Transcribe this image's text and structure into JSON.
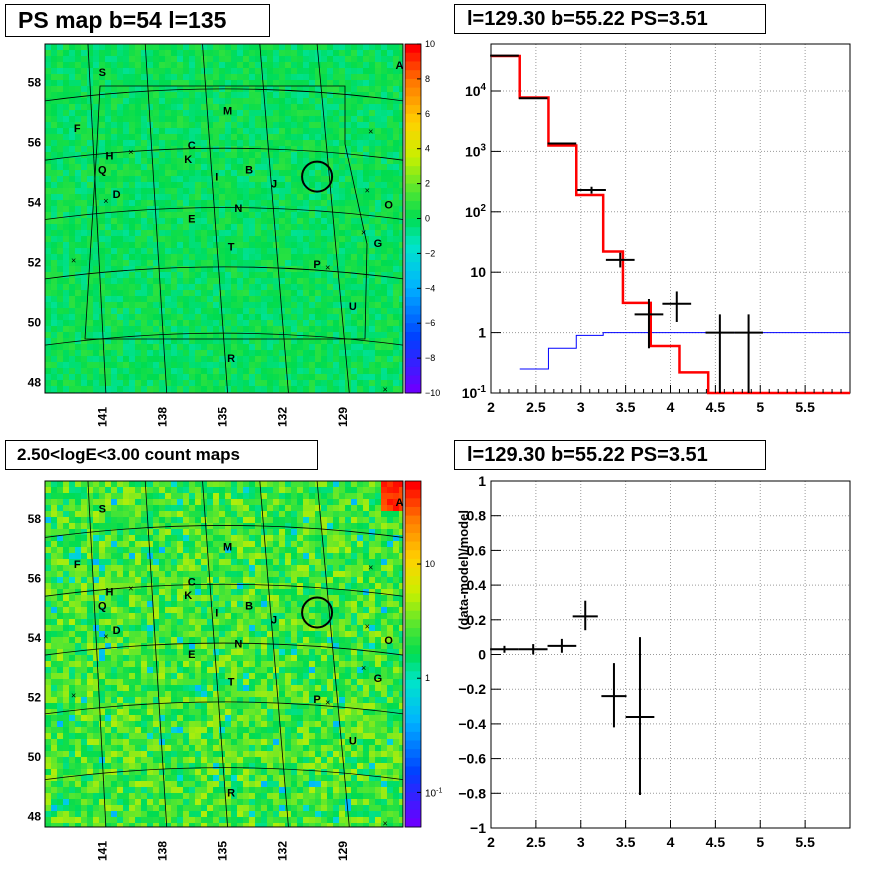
{
  "panels": {
    "top_left_title": "PS map b=54 l=135",
    "top_right_title": "l=129.30 b=55.22 PS=3.51",
    "bottom_left_title": "2.50<logE<3.00 count maps",
    "bottom_right_title": "l=129.30 b=55.22 PS=3.51"
  },
  "chart_data": [
    {
      "type": "heatmap",
      "title": "PS map b=54 l=135",
      "x_tick_labels": [
        "141",
        "138",
        "135",
        "132",
        "129"
      ],
      "y_tick_labels": [
        "48",
        "50",
        "52",
        "54",
        "56",
        "58"
      ],
      "colorbar": {
        "scale": "linear",
        "range": [
          -10,
          10
        ],
        "tick_labels": [
          "10",
          "8",
          "6",
          "4",
          "2",
          "0",
          "−2",
          "−4",
          "−6",
          "−8",
          "−10"
        ]
      },
      "source_labels": [
        "S",
        "A",
        "M",
        "F",
        "C",
        "H",
        "K",
        "Q",
        "I",
        "B",
        "J",
        "D",
        "O",
        "N",
        "E",
        "G",
        "T",
        "P",
        "U",
        "R"
      ],
      "dominant_value": 0
    },
    {
      "type": "line",
      "title": "l=129.30 b=55.22 PS=3.51",
      "xlim": [
        2,
        6
      ],
      "ylim": [
        0.1,
        60000
      ],
      "y_scale": "log",
      "x_tick_labels": [
        "2",
        "2.5",
        "3",
        "3.5",
        "4",
        "4.5",
        "5",
        "5.5"
      ],
      "y_tick_labels": [
        "10^-1",
        "1",
        "10",
        "10^2",
        "10^3",
        "10^4"
      ],
      "model_total": {
        "color": "#ff0000",
        "edges": [
          2.0,
          2.32,
          2.64,
          2.95,
          3.25,
          3.47,
          3.78,
          4.1,
          4.42,
          6.0
        ],
        "values": [
          38000,
          7800,
          1250,
          190,
          22,
          3.1,
          0.6,
          0.22,
          0.1
        ]
      },
      "model_background": {
        "color": "#0000ff",
        "edges": [
          2.32,
          2.64,
          2.95,
          3.25,
          6.0
        ],
        "values": [
          0.25,
          0.55,
          0.9,
          1.0
        ]
      },
      "data_points": [
        {
          "x": 2.15,
          "xerr": 0.16,
          "y": 38500
        },
        {
          "x": 2.47,
          "xerr": 0.16,
          "y": 7600
        },
        {
          "x": 2.79,
          "xerr": 0.16,
          "y": 1350
        },
        {
          "x": 3.12,
          "xerr": 0.16,
          "y": 230,
          "ylo": 200,
          "yhi": 260
        },
        {
          "x": 3.44,
          "xerr": 0.16,
          "y": 16,
          "ylo": 12,
          "yhi": 21
        },
        {
          "x": 3.76,
          "xerr": 0.16,
          "y": 2.0,
          "ylo": 0.55,
          "yhi": 3.6
        },
        {
          "x": 4.07,
          "xerr": 0.16,
          "y": 3.0,
          "ylo": 1.5,
          "yhi": 4.8
        },
        {
          "x": 4.55,
          "xerr": 0.16,
          "y": 1.0,
          "ylo": 0.1,
          "yhi": 2.0
        },
        {
          "x": 4.87,
          "xerr": 0.16,
          "y": 1.0,
          "ylo": 0.1,
          "yhi": 2.0
        }
      ]
    },
    {
      "type": "heatmap",
      "title": "2.50<logE<3.00 count maps",
      "x_tick_labels": [
        "141",
        "138",
        "135",
        "132",
        "129"
      ],
      "y_tick_labels": [
        "48",
        "50",
        "52",
        "54",
        "56",
        "58"
      ],
      "colorbar": {
        "scale": "log",
        "tick_labels": [
          "10",
          "1",
          "10^-1"
        ]
      },
      "source_labels": [
        "S",
        "A",
        "M",
        "F",
        "C",
        "H",
        "K",
        "Q",
        "I",
        "B",
        "J",
        "D",
        "O",
        "N",
        "E",
        "G",
        "T",
        "P",
        "U",
        "R"
      ]
    },
    {
      "type": "scatter",
      "title": "l=129.30 b=55.22 PS=3.51",
      "ylabel": "(data-model)/model",
      "xlim": [
        2,
        6
      ],
      "ylim": [
        -1,
        1
      ],
      "x_tick_labels": [
        "2",
        "2.5",
        "3",
        "3.5",
        "4",
        "4.5",
        "5",
        "5.5"
      ],
      "y_tick_labels": [
        "1",
        "0.8",
        "0.6",
        "0.4",
        "0.2",
        "0",
        "−0.2",
        "−0.4",
        "−0.6",
        "−0.8",
        "−1"
      ],
      "points": [
        {
          "x": 2.15,
          "xerr": 0.16,
          "y": 0.03,
          "ylo": 0.01,
          "yhi": 0.05
        },
        {
          "x": 2.47,
          "xerr": 0.16,
          "y": 0.03,
          "ylo": 0.0,
          "yhi": 0.06
        },
        {
          "x": 2.79,
          "xerr": 0.16,
          "y": 0.05,
          "ylo": 0.01,
          "yhi": 0.09
        },
        {
          "x": 3.05,
          "xerr": 0.14,
          "y": 0.22,
          "ylo": 0.14,
          "yhi": 0.31
        },
        {
          "x": 3.37,
          "xerr": 0.14,
          "y": -0.24,
          "ylo": -0.42,
          "yhi": -0.05
        },
        {
          "x": 3.66,
          "xerr": 0.16,
          "y": -0.36,
          "ylo": -0.81,
          "yhi": 0.1
        }
      ]
    }
  ]
}
